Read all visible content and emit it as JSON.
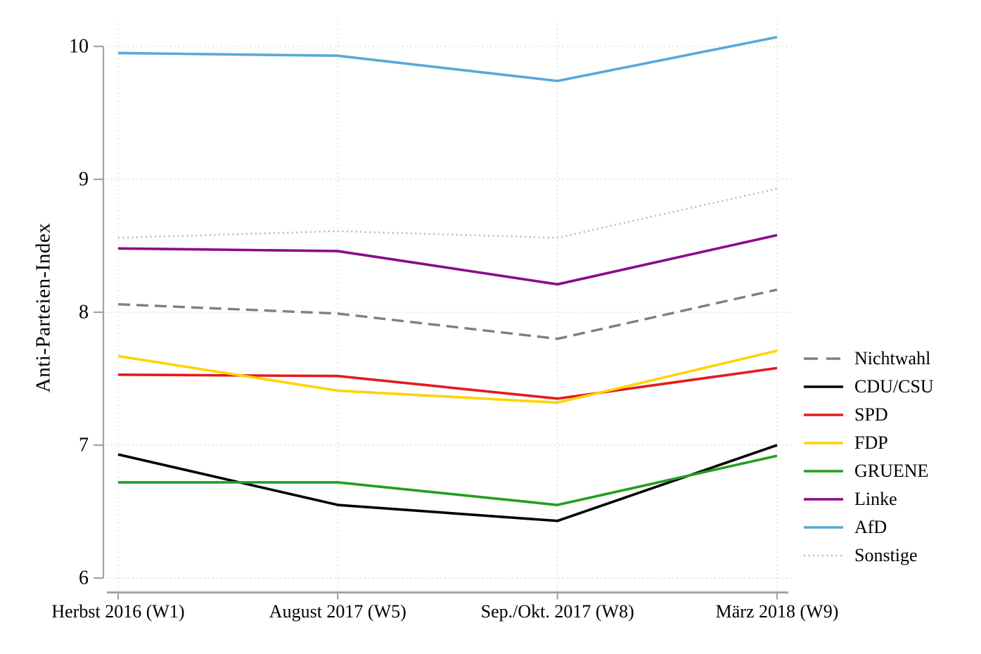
{
  "chart_data": {
    "type": "line",
    "title": "",
    "xlabel": "",
    "ylabel": "Anti-Parteien-Index",
    "ylim": [
      6,
      10
    ],
    "yticks": [
      "10",
      "9",
      "8",
      "7",
      "6"
    ],
    "ytick_values": [
      10,
      9,
      8,
      7,
      6
    ],
    "grid": "dotted horizontal and vertical gridlines",
    "legend_position": "right",
    "categories": [
      "Herbst 2016 (W1)",
      "August 2017 (W5)",
      "Sep./Okt. 2017 (W8)",
      "März 2018 (W9)"
    ],
    "series": [
      {
        "name": "Nichtwahl",
        "color": "#7f7f7f",
        "style": "dashed",
        "values": [
          8.06,
          7.99,
          7.8,
          8.17
        ]
      },
      {
        "name": "CDU/CSU",
        "color": "#000000",
        "style": "solid",
        "values": [
          6.93,
          6.55,
          6.43,
          7.0
        ]
      },
      {
        "name": "SPD",
        "color": "#e41a1c",
        "style": "solid",
        "values": [
          7.53,
          7.52,
          7.35,
          7.58
        ]
      },
      {
        "name": "FDP",
        "color": "#ffd300",
        "style": "solid",
        "values": [
          7.67,
          7.41,
          7.32,
          7.71
        ]
      },
      {
        "name": "GRUENE",
        "color": "#20a020",
        "style": "solid",
        "values": [
          6.72,
          6.72,
          6.55,
          6.92
        ]
      },
      {
        "name": "Linke",
        "color": "#8a0a8a",
        "style": "solid",
        "values": [
          8.48,
          8.46,
          8.21,
          8.58
        ]
      },
      {
        "name": "AfD",
        "color": "#58a8d8",
        "style": "solid",
        "values": [
          9.95,
          9.93,
          9.74,
          10.07
        ]
      },
      {
        "name": "Sonstige",
        "color": "#b8b8b8",
        "style": "dotted",
        "values": [
          8.56,
          8.61,
          8.56,
          8.93
        ]
      }
    ]
  },
  "axis_colors": {
    "axis_line": "#a3a3a3",
    "gridline": "#cccccc",
    "tick_label": "#000000"
  }
}
